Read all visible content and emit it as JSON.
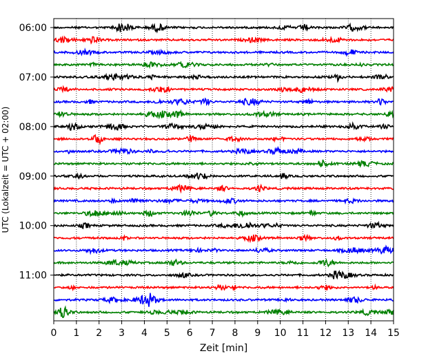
{
  "chart_data": {
    "type": "line",
    "title": "",
    "xlabel": "Zeit  [min]",
    "ylabel": "UTC (Lokalzeit = UTC + 02:00)",
    "xlim": [
      0,
      15
    ],
    "x_ticks": [
      0,
      1,
      2,
      3,
      4,
      5,
      6,
      7,
      8,
      9,
      10,
      11,
      12,
      13,
      14,
      15
    ],
    "y_tick_labels": [
      "06:00",
      "07:00",
      "08:00",
      "09:00",
      "10:00",
      "11:00"
    ],
    "grid": "vertical dotted",
    "trace_minutes_per_row": 15,
    "color_cycle": [
      "#000000",
      "#ff0000",
      "#0000ff",
      "#008000"
    ],
    "rows": [
      "06:00",
      "06:15",
      "06:30",
      "06:45",
      "07:00",
      "07:15",
      "07:30",
      "07:45",
      "08:00",
      "08:15",
      "08:30",
      "08:45",
      "09:00",
      "09:15",
      "09:30",
      "09:45",
      "10:00",
      "10:15",
      "10:30",
      "10:45",
      "11:00",
      "11:15",
      "11:30",
      "11:45"
    ]
  }
}
